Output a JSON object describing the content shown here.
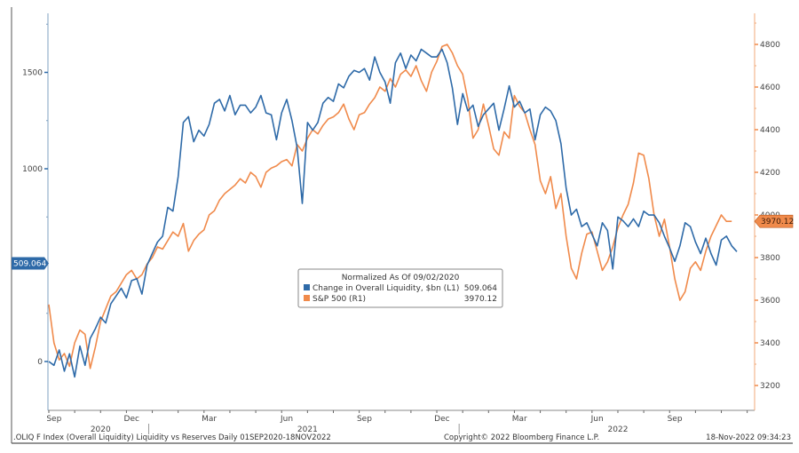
{
  "colors": {
    "series_liquidity": "#2e6aa8",
    "series_sp500": "#f08a4b",
    "left_axis": "#6f8fb0",
    "right_axis": "#f0a070",
    "frame": "#555555"
  },
  "chart_data": {
    "type": "line",
    "title": "Liquidity vs Reserves",
    "legend": {
      "title": "Normalized As Of 09/02/2020",
      "placement": "center",
      "entries": [
        {
          "name": "Change in Overall Liquidity, $bn (L1)",
          "last": "509.064",
          "axis": "left"
        },
        {
          "name": "S&P 500 (R1)",
          "last": "3970.12",
          "axis": "right"
        }
      ]
    },
    "left_axis": {
      "ylim": [
        -260,
        1780
      ],
      "ticks": [
        0,
        1000,
        1500
      ],
      "minor_ticks": [
        500
      ],
      "last_value_badge": "509.064"
    },
    "right_axis": {
      "ylim": [
        3060,
        4920
      ],
      "ticks": [
        3200,
        3400,
        3600,
        3800,
        4000,
        4200,
        4400,
        4600,
        4800
      ],
      "last_value_badge": "3970.12"
    },
    "x_axis": {
      "range": [
        "2020-09-01",
        "2022-11-18"
      ],
      "month_labels": [
        {
          "label": "Sep",
          "t": 0.2
        },
        {
          "label": "Dec",
          "t": 3.2
        },
        {
          "label": "Mar",
          "t": 6.2
        },
        {
          "label": "Jun",
          "t": 9.2
        },
        {
          "label": "Sep",
          "t": 12.2
        },
        {
          "label": "Dec",
          "t": 15.2
        },
        {
          "label": "Mar",
          "t": 18.2
        },
        {
          "label": "Jun",
          "t": 21.2
        },
        {
          "label": "Sep",
          "t": 24.2
        }
      ],
      "year_labels": [
        {
          "label": "2020",
          "t": 2.0
        },
        {
          "label": "2021",
          "t": 10.0
        },
        {
          "label": "2022",
          "t": 22.0
        }
      ],
      "year_dividers": [
        4.0,
        16.0
      ],
      "months_total": 26.6
    },
    "series": [
      {
        "name": "Change in Overall Liquidity, $bn (L1)",
        "axis": "left",
        "t": [
          0,
          0.2,
          0.4,
          0.6,
          0.8,
          1.0,
          1.2,
          1.4,
          1.6,
          1.8,
          2.0,
          2.2,
          2.4,
          2.6,
          2.8,
          3.0,
          3.2,
          3.4,
          3.6,
          3.8,
          4.0,
          4.2,
          4.4,
          4.6,
          4.8,
          5.0,
          5.2,
          5.4,
          5.6,
          5.8,
          6.0,
          6.2,
          6.4,
          6.6,
          6.8,
          7.0,
          7.2,
          7.4,
          7.6,
          7.8,
          8.0,
          8.2,
          8.4,
          8.6,
          8.8,
          9.0,
          9.2,
          9.4,
          9.6,
          9.8,
          10.0,
          10.2,
          10.4,
          10.6,
          10.8,
          11.0,
          11.2,
          11.4,
          11.6,
          11.8,
          12.0,
          12.2,
          12.4,
          12.6,
          12.8,
          13.0,
          13.2,
          13.4,
          13.6,
          13.8,
          14.0,
          14.2,
          14.4,
          14.6,
          14.8,
          15.0,
          15.2,
          15.4,
          15.6,
          15.8,
          16.0,
          16.2,
          16.4,
          16.6,
          16.8,
          17.0,
          17.2,
          17.4,
          17.6,
          17.8,
          18.0,
          18.2,
          18.4,
          18.6,
          18.8,
          19.0,
          19.2,
          19.4,
          19.6,
          19.8,
          20.0,
          20.2,
          20.4,
          20.6,
          20.8,
          21.0,
          21.2,
          21.4,
          21.6,
          21.8,
          22.0,
          22.2,
          22.4,
          22.6,
          22.8,
          23.0,
          23.2,
          23.4,
          23.6,
          23.8,
          24.0,
          24.2,
          24.4,
          24.6,
          24.8,
          25.0,
          25.2,
          25.4,
          25.6,
          25.8,
          26.0,
          26.2,
          26.4,
          26.6
        ],
        "values": [
          0,
          -20,
          60,
          -50,
          40,
          -80,
          80,
          -20,
          120,
          170,
          230,
          200,
          300,
          340,
          380,
          330,
          420,
          430,
          350,
          500,
          560,
          620,
          650,
          800,
          780,
          960,
          1240,
          1270,
          1140,
          1200,
          1170,
          1230,
          1340,
          1360,
          1300,
          1380,
          1280,
          1330,
          1330,
          1290,
          1320,
          1380,
          1290,
          1280,
          1150,
          1290,
          1360,
          1250,
          1110,
          820,
          1240,
          1200,
          1240,
          1340,
          1370,
          1350,
          1440,
          1420,
          1480,
          1510,
          1500,
          1520,
          1460,
          1580,
          1500,
          1450,
          1340,
          1550,
          1600,
          1520,
          1590,
          1560,
          1620,
          1600,
          1580,
          1580,
          1620,
          1550,
          1420,
          1230,
          1390,
          1300,
          1330,
          1220,
          1280,
          1310,
          1340,
          1200,
          1310,
          1430,
          1320,
          1350,
          1290,
          1310,
          1150,
          1280,
          1320,
          1300,
          1250,
          1130,
          900,
          760,
          790,
          700,
          720,
          660,
          600,
          720,
          680,
          480,
          750,
          730,
          700,
          740,
          700,
          780,
          760,
          760,
          720,
          650,
          590,
          520,
          600,
          720,
          700,
          620,
          560,
          640,
          560,
          500,
          630,
          650,
          600,
          570,
          620,
          650,
          560,
          510
        ]
      },
      {
        "name": "S&P 500 (R1)",
        "axis": "right",
        "t": [
          0,
          0.2,
          0.4,
          0.6,
          0.8,
          1.0,
          1.2,
          1.4,
          1.6,
          1.8,
          2.0,
          2.2,
          2.4,
          2.6,
          2.8,
          3.0,
          3.2,
          3.4,
          3.6,
          3.8,
          4.0,
          4.2,
          4.4,
          4.6,
          4.8,
          5.0,
          5.2,
          5.4,
          5.6,
          5.8,
          6.0,
          6.2,
          6.4,
          6.6,
          6.8,
          7.0,
          7.2,
          7.4,
          7.6,
          7.8,
          8.0,
          8.2,
          8.4,
          8.6,
          8.8,
          9.0,
          9.2,
          9.4,
          9.6,
          9.8,
          10.0,
          10.2,
          10.4,
          10.6,
          10.8,
          11.0,
          11.2,
          11.4,
          11.6,
          11.8,
          12.0,
          12.2,
          12.4,
          12.6,
          12.8,
          13.0,
          13.2,
          13.4,
          13.6,
          13.8,
          14.0,
          14.2,
          14.4,
          14.6,
          14.8,
          15.0,
          15.2,
          15.4,
          15.6,
          15.8,
          16.0,
          16.2,
          16.4,
          16.6,
          16.8,
          17.0,
          17.2,
          17.4,
          17.6,
          17.8,
          18.0,
          18.2,
          18.4,
          18.6,
          18.8,
          19.0,
          19.2,
          19.4,
          19.6,
          19.8,
          20.0,
          20.2,
          20.4,
          20.6,
          20.8,
          21.0,
          21.2,
          21.4,
          21.6,
          21.8,
          22.0,
          22.2,
          22.4,
          22.6,
          22.8,
          23.0,
          23.2,
          23.4,
          23.6,
          23.8,
          24.0,
          24.2,
          24.4,
          24.6,
          24.8,
          25.0,
          25.2,
          25.4,
          25.6,
          25.8,
          26.0,
          26.2,
          26.4,
          26.6
        ],
        "values": [
          3580,
          3400,
          3320,
          3350,
          3290,
          3400,
          3460,
          3440,
          3280,
          3380,
          3500,
          3560,
          3620,
          3640,
          3680,
          3720,
          3740,
          3700,
          3720,
          3770,
          3800,
          3850,
          3840,
          3880,
          3920,
          3900,
          3960,
          3830,
          3880,
          3910,
          3930,
          4000,
          4020,
          4070,
          4100,
          4120,
          4140,
          4170,
          4150,
          4200,
          4180,
          4130,
          4200,
          4220,
          4230,
          4250,
          4260,
          4230,
          4330,
          4300,
          4360,
          4400,
          4380,
          4420,
          4450,
          4460,
          4480,
          4520,
          4450,
          4400,
          4470,
          4480,
          4520,
          4550,
          4600,
          4580,
          4640,
          4600,
          4660,
          4680,
          4650,
          4700,
          4630,
          4580,
          4670,
          4720,
          4790,
          4800,
          4760,
          4700,
          4660,
          4540,
          4360,
          4400,
          4520,
          4420,
          4310,
          4280,
          4390,
          4360,
          4560,
          4510,
          4480,
          4400,
          4330,
          4160,
          4100,
          4180,
          4030,
          4100,
          3900,
          3750,
          3700,
          3820,
          3910,
          3920,
          3830,
          3740,
          3780,
          3850,
          3940,
          4000,
          4050,
          4150,
          4290,
          4280,
          4170,
          4000,
          3900,
          3980,
          3850,
          3700,
          3600,
          3640,
          3750,
          3780,
          3740,
          3830,
          3900,
          3950,
          4000,
          3970,
          3970
        ]
      }
    ]
  },
  "footer": {
    "left": ".OLIQ F Index (Overall Liquidity) Liquidity vs Reserves  Daily 01SEP2020-18NOV2022",
    "center": "Copyright© 2022 Bloomberg Finance L.P.",
    "right": "18-Nov-2022 09:34:23"
  },
  "left_tick_labels": [
    "0",
    "1000",
    "1500"
  ],
  "right_tick_labels": [
    "3200",
    "3400",
    "3600",
    "3800",
    "4000",
    "4200",
    "4400",
    "4600",
    "4800"
  ]
}
